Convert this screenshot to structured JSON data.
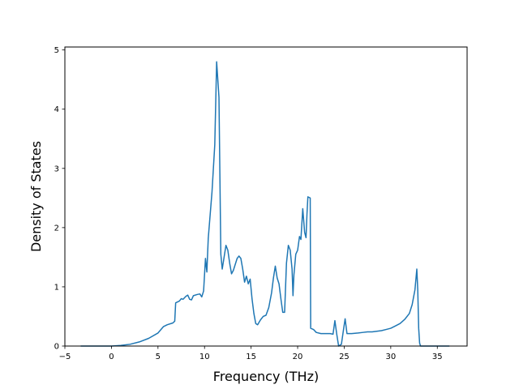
{
  "chart_data": {
    "type": "line",
    "title": "",
    "xlabel": "Frequency (THz)",
    "ylabel": "Density of States",
    "xlim": [
      -5.0,
      38.2
    ],
    "ylim": [
      0,
      5.05
    ],
    "x_ticks": [
      -5,
      0,
      5,
      10,
      15,
      20,
      25,
      30,
      35
    ],
    "y_ticks": [
      0,
      1,
      2,
      3,
      4,
      5
    ],
    "grid": false,
    "legend": "none",
    "series": [
      {
        "color": "#1f77b4",
        "points": [
          [
            -3.3,
            0.0
          ],
          [
            -1.0,
            0.0
          ],
          [
            0.0,
            0.0
          ],
          [
            1.0,
            0.01
          ],
          [
            2.0,
            0.03
          ],
          [
            3.0,
            0.07
          ],
          [
            4.0,
            0.13
          ],
          [
            5.0,
            0.22
          ],
          [
            5.6,
            0.33
          ],
          [
            6.0,
            0.36
          ],
          [
            6.6,
            0.39
          ],
          [
            6.8,
            0.42
          ],
          [
            6.9,
            0.73
          ],
          [
            7.3,
            0.76
          ],
          [
            7.5,
            0.8
          ],
          [
            7.7,
            0.79
          ],
          [
            8.0,
            0.84
          ],
          [
            8.2,
            0.86
          ],
          [
            8.4,
            0.79
          ],
          [
            8.6,
            0.78
          ],
          [
            8.8,
            0.85
          ],
          [
            9.2,
            0.87
          ],
          [
            9.5,
            0.88
          ],
          [
            9.7,
            0.83
          ],
          [
            9.9,
            0.93
          ],
          [
            10.1,
            1.48
          ],
          [
            10.25,
            1.25
          ],
          [
            10.4,
            1.82
          ],
          [
            10.8,
            2.6
          ],
          [
            11.1,
            3.4
          ],
          [
            11.3,
            4.8
          ],
          [
            11.55,
            4.2
          ],
          [
            11.75,
            1.55
          ],
          [
            11.9,
            1.3
          ],
          [
            12.1,
            1.5
          ],
          [
            12.3,
            1.7
          ],
          [
            12.5,
            1.62
          ],
          [
            12.7,
            1.4
          ],
          [
            12.9,
            1.22
          ],
          [
            13.1,
            1.28
          ],
          [
            13.5,
            1.48
          ],
          [
            13.7,
            1.52
          ],
          [
            13.9,
            1.48
          ],
          [
            14.1,
            1.3
          ],
          [
            14.3,
            1.08
          ],
          [
            14.5,
            1.18
          ],
          [
            14.7,
            1.05
          ],
          [
            14.9,
            1.13
          ],
          [
            15.1,
            0.8
          ],
          [
            15.3,
            0.55
          ],
          [
            15.5,
            0.38
          ],
          [
            15.7,
            0.36
          ],
          [
            16.0,
            0.44
          ],
          [
            16.3,
            0.5
          ],
          [
            16.6,
            0.52
          ],
          [
            16.9,
            0.65
          ],
          [
            17.2,
            0.9
          ],
          [
            17.4,
            1.15
          ],
          [
            17.6,
            1.35
          ],
          [
            17.8,
            1.15
          ],
          [
            18.0,
            1.05
          ],
          [
            18.2,
            0.8
          ],
          [
            18.4,
            0.57
          ],
          [
            18.6,
            0.57
          ],
          [
            18.8,
            1.4
          ],
          [
            19.0,
            1.7
          ],
          [
            19.2,
            1.62
          ],
          [
            19.4,
            1.3
          ],
          [
            19.5,
            0.85
          ],
          [
            19.6,
            1.2
          ],
          [
            19.8,
            1.55
          ],
          [
            20.0,
            1.62
          ],
          [
            20.2,
            1.85
          ],
          [
            20.35,
            1.8
          ],
          [
            20.55,
            2.32
          ],
          [
            20.75,
            1.92
          ],
          [
            20.9,
            1.83
          ],
          [
            21.0,
            2.22
          ],
          [
            21.1,
            2.52
          ],
          [
            21.35,
            2.5
          ],
          [
            21.4,
            0.3
          ],
          [
            21.7,
            0.28
          ],
          [
            22.0,
            0.23
          ],
          [
            22.5,
            0.21
          ],
          [
            23.0,
            0.21
          ],
          [
            23.5,
            0.21
          ],
          [
            23.8,
            0.2
          ],
          [
            24.0,
            0.43
          ],
          [
            24.2,
            0.2
          ],
          [
            24.4,
            0.0
          ],
          [
            24.7,
            0.03
          ],
          [
            24.9,
            0.25
          ],
          [
            25.1,
            0.46
          ],
          [
            25.3,
            0.21
          ],
          [
            25.8,
            0.21
          ],
          [
            26.5,
            0.22
          ],
          [
            27.0,
            0.23
          ],
          [
            27.5,
            0.24
          ],
          [
            28.0,
            0.24
          ],
          [
            28.5,
            0.25
          ],
          [
            29.0,
            0.26
          ],
          [
            29.5,
            0.28
          ],
          [
            30.0,
            0.3
          ],
          [
            30.5,
            0.34
          ],
          [
            31.0,
            0.38
          ],
          [
            31.5,
            0.45
          ],
          [
            32.0,
            0.55
          ],
          [
            32.3,
            0.7
          ],
          [
            32.6,
            0.95
          ],
          [
            32.8,
            1.3
          ],
          [
            32.9,
            0.95
          ],
          [
            33.0,
            0.3
          ],
          [
            33.1,
            0.05
          ],
          [
            33.2,
            0.0
          ],
          [
            34.0,
            0.0
          ],
          [
            35.0,
            0.0
          ],
          [
            36.3,
            0.0
          ]
        ]
      }
    ]
  }
}
